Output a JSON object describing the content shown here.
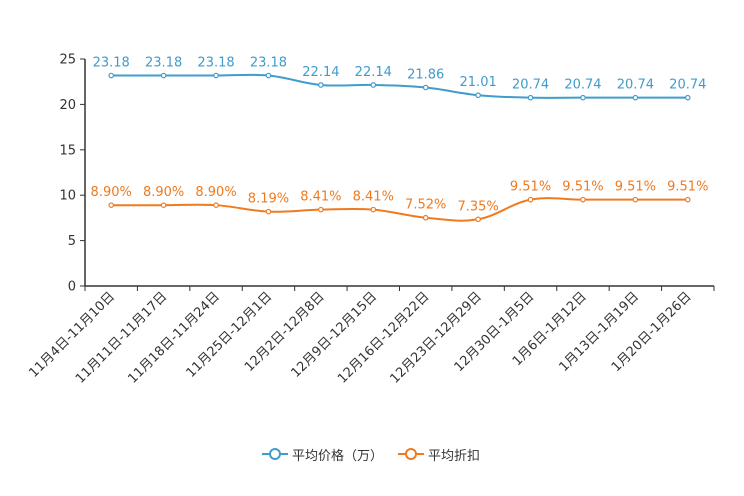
{
  "chart_data": {
    "type": "line",
    "title": "",
    "xlabel": "",
    "ylabel": "",
    "ylim": [
      0,
      25
    ],
    "yticks": [
      0,
      5,
      10,
      15,
      20,
      25
    ],
    "grid": false,
    "legend_position": "bottom",
    "categories": [
      "11月4日-11月10日",
      "11月11日-11月17日",
      "11月18日-11月24日",
      "11月25日-12月1日",
      "12月2日-12月8日",
      "12月9日-12月15日",
      "12月16日-12月22日",
      "12月23日-12月29日",
      "12月30日-1月5日",
      "1月6日-1月12日",
      "1月13日-1月19日",
      "1月20日-1月26日"
    ],
    "series": [
      {
        "name": "平均价格（万）",
        "color": "#3f9ccc",
        "values": [
          23.18,
          23.18,
          23.18,
          23.18,
          22.14,
          22.14,
          21.86,
          21.01,
          20.74,
          20.74,
          20.74,
          20.74
        ],
        "labels": [
          "23.18",
          "23.18",
          "23.18",
          "23.18",
          "22.14",
          "22.14",
          "21.86",
          "21.01",
          "20.74",
          "20.74",
          "20.74",
          "20.74"
        ]
      },
      {
        "name": "平均折扣",
        "color": "#f07a1e",
        "values": [
          8.9,
          8.9,
          8.9,
          8.19,
          8.41,
          8.41,
          7.52,
          7.35,
          9.51,
          9.51,
          9.51,
          9.51
        ],
        "labels": [
          "8.90%",
          "8.90%",
          "8.90%",
          "8.19%",
          "8.41%",
          "8.41%",
          "7.52%",
          "7.35%",
          "9.51%",
          "9.51%",
          "9.51%",
          "9.51%"
        ]
      }
    ]
  }
}
